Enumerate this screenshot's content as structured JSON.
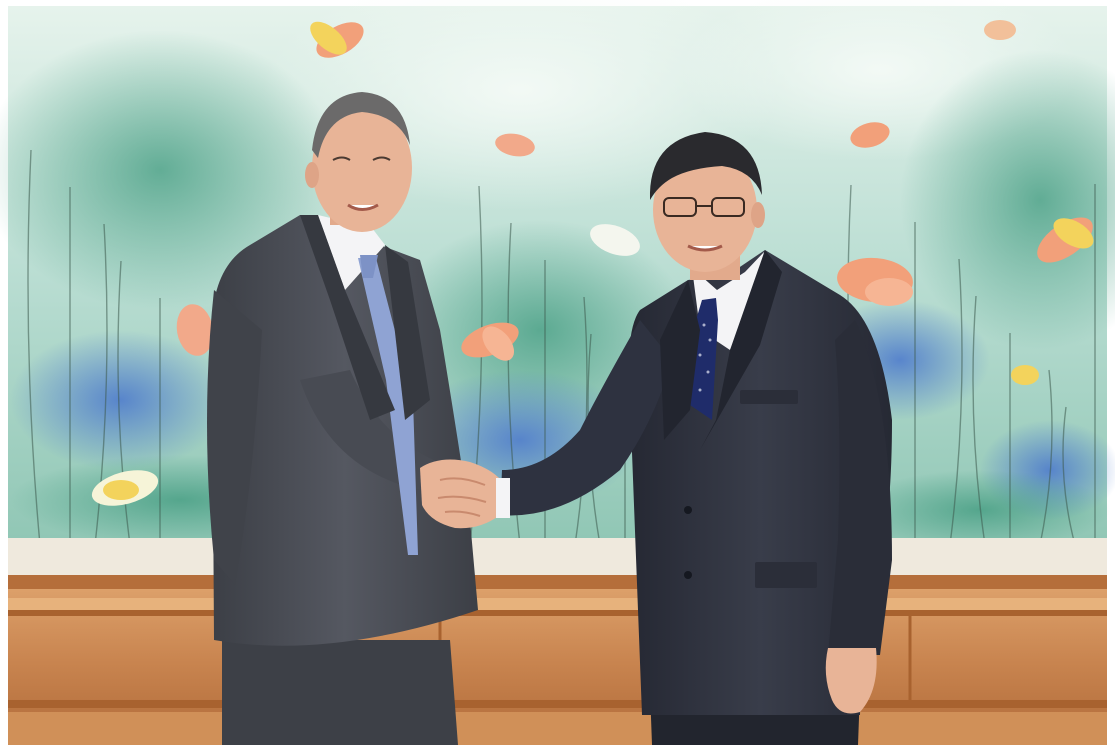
{
  "photo": {
    "description_tag": "",
    "colors": {
      "frame": "#ffffff",
      "painting_base": "#b9ddd2",
      "painting_light": "#e4f2ea",
      "painting_green": "#6fb29a",
      "painting_blue": "#4d7fc8",
      "lotus_orange": "#f2a07a",
      "lotus_yellow": "#f3d35c",
      "mat": "#efe9dd",
      "wood_light": "#d79862",
      "wood_mid": "#c07b45",
      "wood_dark": "#9a5a2e",
      "suit_left": "#4a4d55",
      "suit_right": "#2c2f3a",
      "shirt": "#f4f4f6",
      "tie_left": "#8fa3d3",
      "tie_right": "#1f2c6a",
      "skin": "#e8b497",
      "hair_left": "#6b6a6a",
      "hair_right": "#2a2a2e"
    }
  }
}
